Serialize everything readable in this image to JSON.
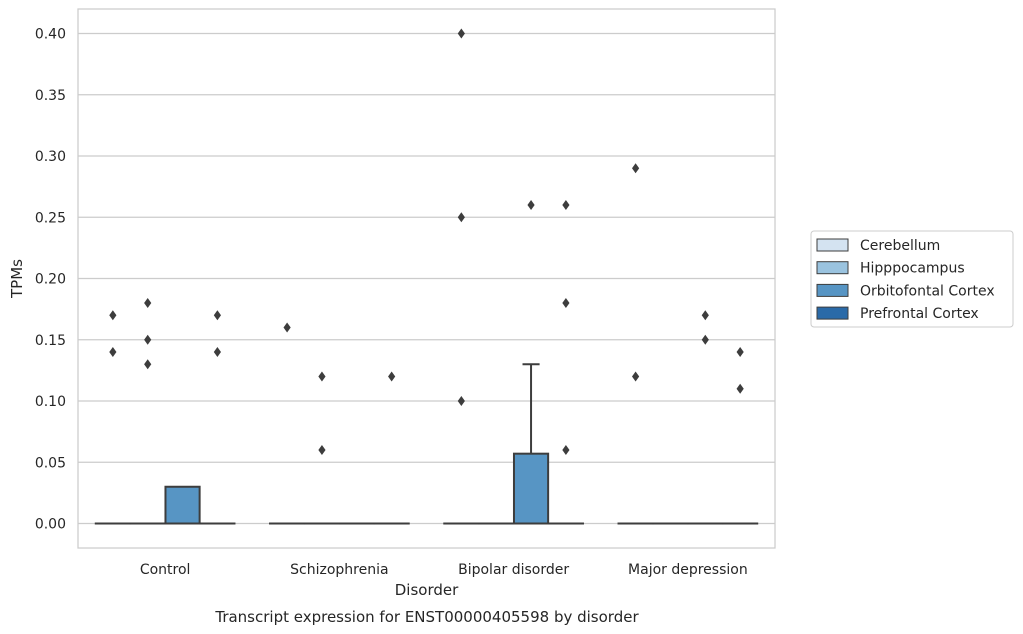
{
  "chart_data": {
    "type": "box",
    "title": "",
    "caption": "Transcript expression for ENST00000405598 by disorder",
    "xlabel": "Disorder",
    "ylabel": "TPMs",
    "ylim": [
      -0.02,
      0.42
    ],
    "yticks": [
      0.0,
      0.05,
      0.1,
      0.15,
      0.2,
      0.25,
      0.3,
      0.35,
      0.4
    ],
    "ytick_labels": [
      "0.00",
      "0.05",
      "0.10",
      "0.15",
      "0.20",
      "0.25",
      "0.30",
      "0.35",
      "0.40"
    ],
    "grid": true,
    "legend_placement": "center-right outside",
    "categories": [
      "Control",
      "Schizophrenia",
      "Bipolar disorder",
      "Major depression"
    ],
    "series": [
      {
        "name": "Cerebellum",
        "color": "#d4e3f1",
        "boxes": [
          {
            "category": "Control",
            "q1": 0,
            "median": 0,
            "q3": 0,
            "whisker_low": 0,
            "whisker_high": 0,
            "outliers": [
              0.17,
              0.14
            ]
          },
          {
            "category": "Schizophrenia",
            "q1": 0,
            "median": 0,
            "q3": 0,
            "whisker_low": 0,
            "whisker_high": 0,
            "outliers": [
              0.16
            ]
          },
          {
            "category": "Bipolar disorder",
            "q1": 0,
            "median": 0,
            "q3": 0,
            "whisker_low": 0,
            "whisker_high": 0,
            "outliers": [
              0.4,
              0.25,
              0.1
            ]
          },
          {
            "category": "Major depression",
            "q1": 0,
            "median": 0,
            "q3": 0,
            "whisker_low": 0,
            "whisker_high": 0,
            "outliers": [
              0.29,
              0.12
            ]
          }
        ]
      },
      {
        "name": "Hipppocampus",
        "color": "#9ac3df",
        "boxes": [
          {
            "category": "Control",
            "q1": 0,
            "median": 0,
            "q3": 0,
            "whisker_low": 0,
            "whisker_high": 0,
            "outliers": [
              0.18,
              0.15,
              0.13
            ]
          },
          {
            "category": "Schizophrenia",
            "q1": 0,
            "median": 0,
            "q3": 0,
            "whisker_low": 0,
            "whisker_high": 0,
            "outliers": [
              0.12,
              0.06
            ]
          },
          {
            "category": "Bipolar disorder",
            "q1": 0,
            "median": 0,
            "q3": 0,
            "whisker_low": 0,
            "whisker_high": 0,
            "outliers": []
          },
          {
            "category": "Major depression",
            "q1": 0,
            "median": 0,
            "q3": 0,
            "whisker_low": 0,
            "whisker_high": 0,
            "outliers": []
          }
        ]
      },
      {
        "name": "Orbitofontal Cortex",
        "color": "#5795c4",
        "boxes": [
          {
            "category": "Control",
            "q1": 0,
            "median": 0,
            "q3": 0.03,
            "whisker_low": 0,
            "whisker_high": 0.03,
            "outliers": []
          },
          {
            "category": "Schizophrenia",
            "q1": 0,
            "median": 0,
            "q3": 0,
            "whisker_low": 0,
            "whisker_high": 0,
            "outliers": []
          },
          {
            "category": "Bipolar disorder",
            "q1": 0,
            "median": 0,
            "q3": 0.057,
            "whisker_low": 0,
            "whisker_high": 0.13,
            "outliers": []
          },
          {
            "category": "Major depression",
            "q1": 0,
            "median": 0,
            "q3": 0,
            "whisker_low": 0,
            "whisker_high": 0,
            "outliers": [
              0.17,
              0.15
            ]
          }
        ]
      },
      {
        "name": "Prefrontal Cortex",
        "color": "#2a6aa8",
        "boxes": [
          {
            "category": "Control",
            "q1": 0,
            "median": 0,
            "q3": 0,
            "whisker_low": 0,
            "whisker_high": 0,
            "outliers": [
              0.17,
              0.14
            ]
          },
          {
            "category": "Schizophrenia",
            "q1": 0,
            "median": 0,
            "q3": 0,
            "whisker_low": 0,
            "whisker_high": 0,
            "outliers": [
              0.12
            ]
          },
          {
            "category": "Bipolar disorder",
            "q1": 0,
            "median": 0,
            "q3": 0,
            "whisker_low": 0,
            "whisker_high": 0,
            "outliers": [
              0.26,
              0.18,
              0.06
            ]
          },
          {
            "category": "Major depression",
            "q1": 0,
            "median": 0,
            "q3": 0,
            "whisker_low": 0,
            "whisker_high": 0,
            "outliers": [
              0.14,
              0.11
            ]
          }
        ]
      }
    ],
    "outlier_extras": [
      {
        "category": "Bipolar disorder",
        "series": "Orbitofontal Cortex",
        "values": [
          0.26
        ]
      }
    ]
  }
}
